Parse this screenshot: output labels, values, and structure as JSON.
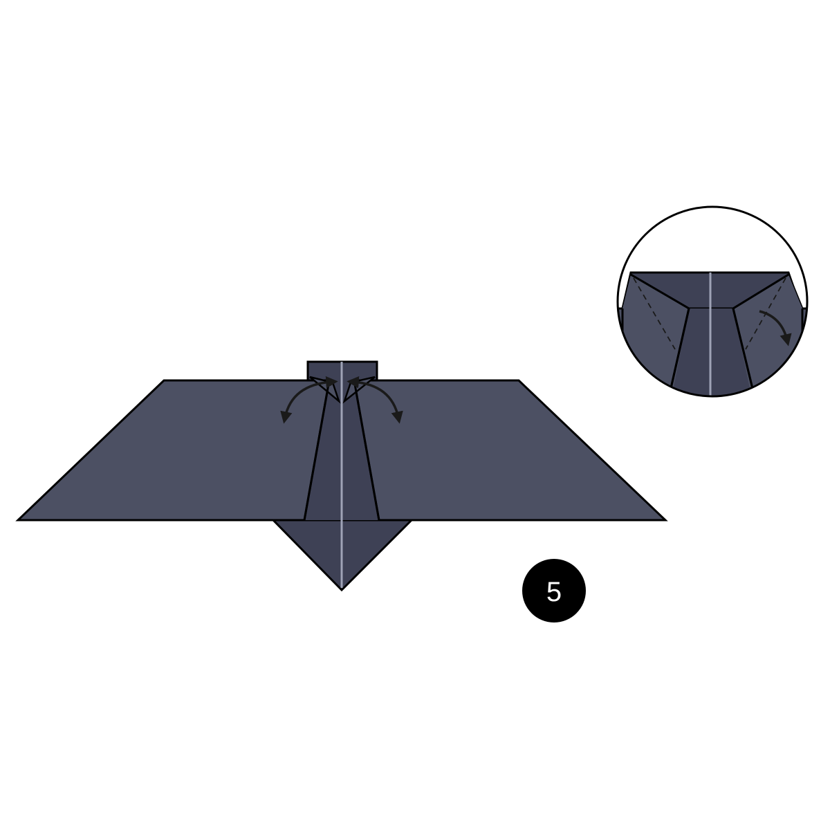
{
  "diagram": {
    "step_number": "5",
    "colors": {
      "paper": "#4c5063",
      "paper_dark": "#3e4155",
      "crease": "#9fa3b6",
      "outline": "#000000",
      "arrow": "#1a1a1a",
      "badge": "#000000",
      "badge_text": "#ffffff",
      "background": "#ffffff"
    },
    "icons": {
      "fold_arrow": "curved-fold-arrow-icon",
      "detail_view": "magnifier-detail-circle"
    }
  }
}
